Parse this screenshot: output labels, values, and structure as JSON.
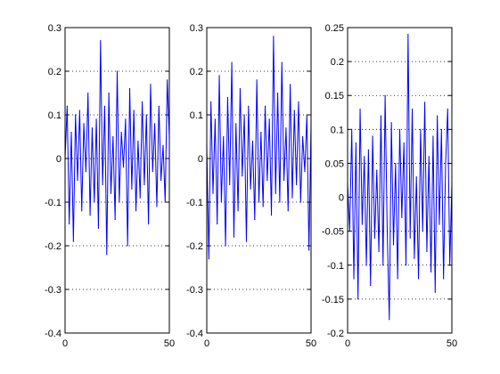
{
  "chart_data": [
    {
      "type": "line",
      "title": "",
      "xlabel": "",
      "ylabel": "",
      "xlim": [
        0,
        50
      ],
      "ylim": [
        -0.4,
        0.3
      ],
      "xticks": [
        "0",
        "50"
      ],
      "yticks": [
        "-0.4",
        "-0.3",
        "-0.2",
        "-0.1",
        "0",
        "0.1",
        "0.2",
        "0.3"
      ],
      "grid": "y-dotted",
      "series": [
        {
          "color": "#0000ff",
          "x": [
            0,
            1,
            2,
            3,
            4,
            5,
            6,
            7,
            8,
            9,
            10,
            11,
            12,
            13,
            14,
            15,
            16,
            17,
            18,
            19,
            20,
            21,
            22,
            23,
            24,
            25,
            26,
            27,
            28,
            29,
            30,
            31,
            32,
            33,
            34,
            35,
            36,
            37,
            38,
            39,
            40,
            41,
            42,
            43,
            44,
            45,
            46,
            47,
            48,
            49,
            50
          ],
          "y": [
            0.0,
            0.12,
            -0.15,
            0.06,
            -0.19,
            0.1,
            -0.05,
            0.11,
            -0.12,
            0.08,
            -0.03,
            0.15,
            -0.13,
            0.07,
            -0.1,
            0.09,
            -0.16,
            0.27,
            -0.06,
            0.12,
            -0.22,
            0.15,
            -0.08,
            0.05,
            -0.14,
            0.2,
            -0.1,
            0.06,
            -0.02,
            0.09,
            -0.2,
            0.16,
            -0.07,
            0.11,
            -0.12,
            0.04,
            -0.09,
            0.13,
            -0.06,
            0.1,
            -0.15,
            0.17,
            -0.03,
            0.08,
            -0.11,
            0.12,
            -0.05,
            0.03,
            -0.1,
            0.18,
            0.05
          ]
        }
      ]
    },
    {
      "type": "line",
      "title": "",
      "xlabel": "",
      "ylabel": "",
      "xlim": [
        0,
        50
      ],
      "ylim": [
        -0.4,
        0.3
      ],
      "xticks": [
        "0",
        "50"
      ],
      "yticks": [
        "-0.4",
        "-0.3",
        "-0.2",
        "-0.1",
        "0",
        "0.1",
        "0.2",
        "0.3"
      ],
      "grid": "y-dotted",
      "series": [
        {
          "color": "#0000ff",
          "x": [
            0,
            1,
            2,
            3,
            4,
            5,
            6,
            7,
            8,
            9,
            10,
            11,
            12,
            13,
            14,
            15,
            16,
            17,
            18,
            19,
            20,
            21,
            22,
            23,
            24,
            25,
            26,
            27,
            28,
            29,
            30,
            31,
            32,
            33,
            34,
            35,
            36,
            37,
            38,
            39,
            40,
            41,
            42,
            43,
            44,
            45,
            46,
            47,
            48,
            49,
            50
          ],
          "y": [
            0.03,
            -0.23,
            0.13,
            -0.08,
            0.09,
            -0.15,
            0.19,
            -0.1,
            0.05,
            -0.2,
            0.14,
            -0.06,
            0.22,
            -0.18,
            0.08,
            -0.12,
            0.16,
            -0.04,
            0.1,
            -0.19,
            0.12,
            -0.07,
            0.04,
            -0.14,
            0.18,
            -0.1,
            0.06,
            -0.11,
            0.12,
            -0.05,
            0.09,
            -0.13,
            0.28,
            -0.08,
            0.15,
            -0.1,
            0.22,
            -0.05,
            0.07,
            -0.12,
            0.17,
            -0.09,
            0.11,
            -0.06,
            0.13,
            -0.1,
            0.05,
            -0.03,
            0.1,
            -0.21,
            0.08
          ]
        }
      ]
    },
    {
      "type": "line",
      "title": "",
      "xlabel": "",
      "ylabel": "",
      "xlim": [
        0,
        50
      ],
      "ylim": [
        -0.2,
        0.25
      ],
      "xticks": [
        "0",
        "50"
      ],
      "yticks": [
        "-0.2",
        "-0.15",
        "-0.1",
        "-0.05",
        "0",
        "0.05",
        "0.1",
        "0.15",
        "0.2",
        "0.25"
      ],
      "grid": "y-dotted",
      "series": [
        {
          "color": "#0000ff",
          "x": [
            0,
            1,
            2,
            3,
            4,
            5,
            6,
            7,
            8,
            9,
            10,
            11,
            12,
            13,
            14,
            15,
            16,
            17,
            18,
            19,
            20,
            21,
            22,
            23,
            24,
            25,
            26,
            27,
            28,
            29,
            30,
            31,
            32,
            33,
            34,
            35,
            36,
            37,
            38,
            39,
            40,
            41,
            42,
            43,
            44,
            45,
            46,
            47,
            48,
            49,
            50
          ],
          "y": [
            0.02,
            -0.05,
            0.1,
            -0.12,
            0.08,
            -0.15,
            0.13,
            -0.04,
            0.06,
            -0.1,
            0.07,
            -0.13,
            0.09,
            -0.06,
            0.04,
            -0.08,
            0.12,
            -0.1,
            0.15,
            -0.05,
            -0.18,
            0.11,
            -0.07,
            0.05,
            -0.12,
            0.1,
            -0.03,
            0.08,
            -0.1,
            0.24,
            -0.06,
            0.13,
            -0.09,
            0.03,
            -0.12,
            0.1,
            -0.05,
            0.14,
            -0.08,
            0.06,
            -0.11,
            0.09,
            -0.14,
            0.12,
            -0.04,
            0.1,
            -0.12,
            0.05,
            0.13,
            -0.1,
            0.02
          ]
        }
      ]
    }
  ]
}
